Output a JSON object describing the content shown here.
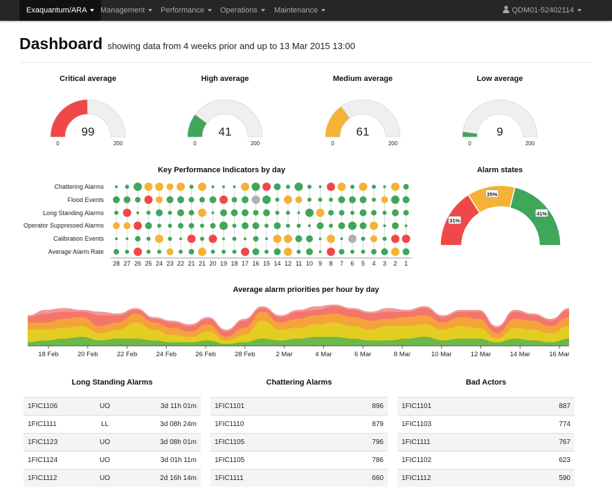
{
  "navbar": {
    "brand": "Exaquantum/ARA",
    "menus": [
      "Management",
      "Performance",
      "Operations",
      "Maintenance"
    ],
    "user": "QDM01-52402114"
  },
  "header": {
    "title": "Dashboard",
    "subtitle": "showing data from 4 weeks prior and up to 13 Mar 2015 13:00"
  },
  "gauges": [
    {
      "title": "Critical average",
      "value": 99,
      "min": 0,
      "max": 200,
      "min_label": "0",
      "max_label": "200",
      "color": "#f04848"
    },
    {
      "title": "High average",
      "value": 41,
      "min": 0,
      "max": 200,
      "min_label": "0",
      "max_label": "200",
      "color": "#3fa65a"
    },
    {
      "title": "Medium average",
      "value": 61,
      "min": 0,
      "max": 200,
      "min_label": "0",
      "max_label": "200",
      "color": "#f5b236"
    },
    {
      "title": "Low average",
      "value": 9,
      "min": 0,
      "max": 200,
      "min_label": "0",
      "max_label": "200",
      "color": "#3fa65a"
    }
  ],
  "kpi": {
    "title": "Key Performance Indicators by day",
    "rows": [
      "Chattering Alarms",
      "Flood Events",
      "Long Standing Alarms",
      "Operator Suppressed Alarms",
      "Calibration Events",
      "Average Alarm Rate"
    ],
    "days": [
      "28",
      "27",
      "26",
      "25",
      "24",
      "23",
      "22",
      "21",
      "21",
      "20",
      "19",
      "18",
      "17",
      "16",
      "15",
      "14",
      "12",
      "11",
      "10",
      "9",
      "8",
      "7",
      "6",
      "5",
      "4",
      "3",
      "2",
      "1"
    ],
    "legend_colors": {
      "g": "#3fa65a",
      "o": "#f5b236",
      "r": "#f04848",
      "x": "#b0b0b0"
    },
    "cells": [
      [
        "g2",
        "g3",
        "g6",
        "o6",
        "o6",
        "o5",
        "o6",
        "g3",
        "o6",
        "g2",
        "g2",
        "g2",
        "o6",
        "g6",
        "r6",
        "g5",
        "g3",
        "g6",
        "g3",
        "g2",
        "r6",
        "o6",
        "g3",
        "o6",
        "g3",
        "g2",
        "o6",
        "g4"
      ],
      [
        "g5",
        "g5",
        "g4",
        "r6",
        "o5",
        "g5",
        "g5",
        "g4",
        "g4",
        "g5",
        "r6",
        "g4",
        "g5",
        "x6",
        "g6",
        "g3",
        "o6",
        "o5",
        "g3",
        "g3",
        "g3",
        "g5",
        "g5",
        "g5",
        "g3",
        "o5",
        "g6",
        "g5"
      ],
      [
        "g3",
        "r6",
        "g2",
        "g3",
        "g5",
        "g3",
        "g5",
        "g4",
        "o6",
        "g2",
        "g5",
        "g5",
        "g5",
        "g4",
        "g5",
        "g3",
        "g3",
        "g2",
        "g6",
        "o6",
        "g4",
        "g4",
        "g3",
        "g5",
        "g4",
        "g3",
        "g5",
        "g4"
      ],
      [
        "o5",
        "o5",
        "r6",
        "g5",
        "g3",
        "g3",
        "g4",
        "g4",
        "g3",
        "g4",
        "g6",
        "g3",
        "g5",
        "g5",
        "g3",
        "g5",
        "g3",
        "g3",
        "g2",
        "g5",
        "g3",
        "g5",
        "g6",
        "g5",
        "o6",
        "g2",
        "g5",
        "g2"
      ],
      [
        "g2",
        "g2",
        "g4",
        "g3",
        "o6",
        "g3",
        "g2",
        "r6",
        "g3",
        "r6",
        "g2",
        "g3",
        "g2",
        "g4",
        "g2",
        "o6",
        "o6",
        "g5",
        "g5",
        "g2",
        "o6",
        "g2",
        "x6",
        "g3",
        "o5",
        "g3",
        "r6",
        "r6"
      ],
      [
        "g4",
        "g3",
        "r6",
        "g3",
        "g3",
        "o5",
        "g3",
        "g4",
        "o6",
        "g3",
        "g3",
        "g3",
        "r6",
        "g5",
        "g3",
        "g5",
        "o6",
        "g3",
        "g5",
        "g2",
        "r6",
        "g4",
        "g3",
        "g3",
        "g4",
        "g5",
        "o6",
        "g5"
      ]
    ]
  },
  "alarm_states": {
    "title": "Alarm states",
    "slices": [
      {
        "label": "31%",
        "value": 31,
        "color": "#f04848"
      },
      {
        "label": "25%",
        "value": 25,
        "color": "#f5b236"
      },
      {
        "label": "41%",
        "value": 41,
        "color": "#3fa65a"
      }
    ]
  },
  "chart_data": {
    "type": "area",
    "title": "Average alarm priorities per hour by day",
    "x_ticks": [
      "18 Feb",
      "20 Feb",
      "22 Feb",
      "24 Feb",
      "26 Feb",
      "28 Feb",
      "2 Mar",
      "4 Mar",
      "6 Mar",
      "8 Mar",
      "10 Mar",
      "12 Mar",
      "14 Mar",
      "16 Mar"
    ],
    "series": [
      {
        "values": [
          1,
          1.5,
          2,
          2.5,
          1.5,
          2,
          2,
          1.5,
          1,
          1,
          1.5,
          0.5,
          1,
          2,
          1.5,
          2,
          2.5,
          2.5,
          2,
          1.5,
          1.5,
          2,
          2.5,
          1.5,
          2,
          2,
          1,
          2,
          1.5,
          1,
          2
        ],
        "color": "#6cb84a"
      },
      {
        "values": [
          3.5,
          3,
          3,
          3,
          2,
          2.5,
          4.5,
          3,
          2,
          1.5,
          2.5,
          1,
          2,
          5,
          3,
          3,
          3.5,
          4,
          3.5,
          3,
          4,
          3.5,
          3.5,
          3,
          3.5,
          3,
          1,
          3,
          3,
          2.5,
          3.5
        ],
        "color": "#e3cd20"
      },
      {
        "values": [
          2,
          2,
          2.5,
          2.5,
          2,
          2,
          2.5,
          2,
          2,
          1.5,
          2,
          1,
          2,
          2.5,
          2,
          2.5,
          2.5,
          2.5,
          2.5,
          2.5,
          2,
          2.5,
          2.5,
          2,
          2.5,
          2.5,
          1.5,
          2.5,
          2.5,
          2,
          2.5
        ],
        "color": "#f5a23c"
      },
      {
        "values": [
          1.5,
          2.5,
          2,
          1.5,
          3,
          2,
          1,
          1,
          1.5,
          1.5,
          1.5,
          1.5,
          2,
          1,
          1.5,
          2,
          1.5,
          2,
          2,
          2,
          2,
          1.5,
          2,
          1.5,
          1.5,
          2,
          1.5,
          2,
          1.5,
          1.5,
          2
        ],
        "color": "#f4766a"
      },
      {
        "values": [
          0.5,
          1,
          1,
          0.5,
          1,
          0.5,
          0.5,
          0.5,
          0.5,
          0.5,
          0.5,
          0.5,
          0.5,
          0.5,
          0.5,
          0.5,
          1,
          0.5,
          0.5,
          0.5,
          1,
          0.5,
          0.5,
          0.5,
          0.5,
          0.5,
          0.5,
          0.5,
          0.5,
          0.5,
          0.5
        ],
        "color": "#f0989a"
      }
    ],
    "grid": false,
    "legend": "none"
  },
  "tables": [
    {
      "title": "Long Standing Alarms",
      "rows": [
        [
          "1FIC1106",
          "UO",
          "3d 11h 01m"
        ],
        [
          "1FIC1111",
          "LL",
          "3d 08h 24m"
        ],
        [
          "1FIC1123",
          "UO",
          "3d 08h 01m"
        ],
        [
          "1FIC1124",
          "UO",
          "3d 01h 11m"
        ],
        [
          "1FIC1112",
          "UO",
          "2d 16h 14m"
        ]
      ]
    },
    {
      "title": "Chattering Alarms",
      "rows": [
        [
          "1FIC1101",
          "896"
        ],
        [
          "1FIC1110",
          "879"
        ],
        [
          "1FIC1105",
          "796"
        ],
        [
          "1FIC1105",
          "786"
        ],
        [
          "1FIC1111",
          "660"
        ]
      ]
    },
    {
      "title": "Bad Actors",
      "rows": [
        [
          "1FIC1101",
          "887"
        ],
        [
          "1FIC1103",
          "774"
        ],
        [
          "1FIC1111",
          "767"
        ],
        [
          "1FIC1102",
          "623"
        ],
        [
          "1FIC1112",
          "590"
        ]
      ]
    }
  ]
}
